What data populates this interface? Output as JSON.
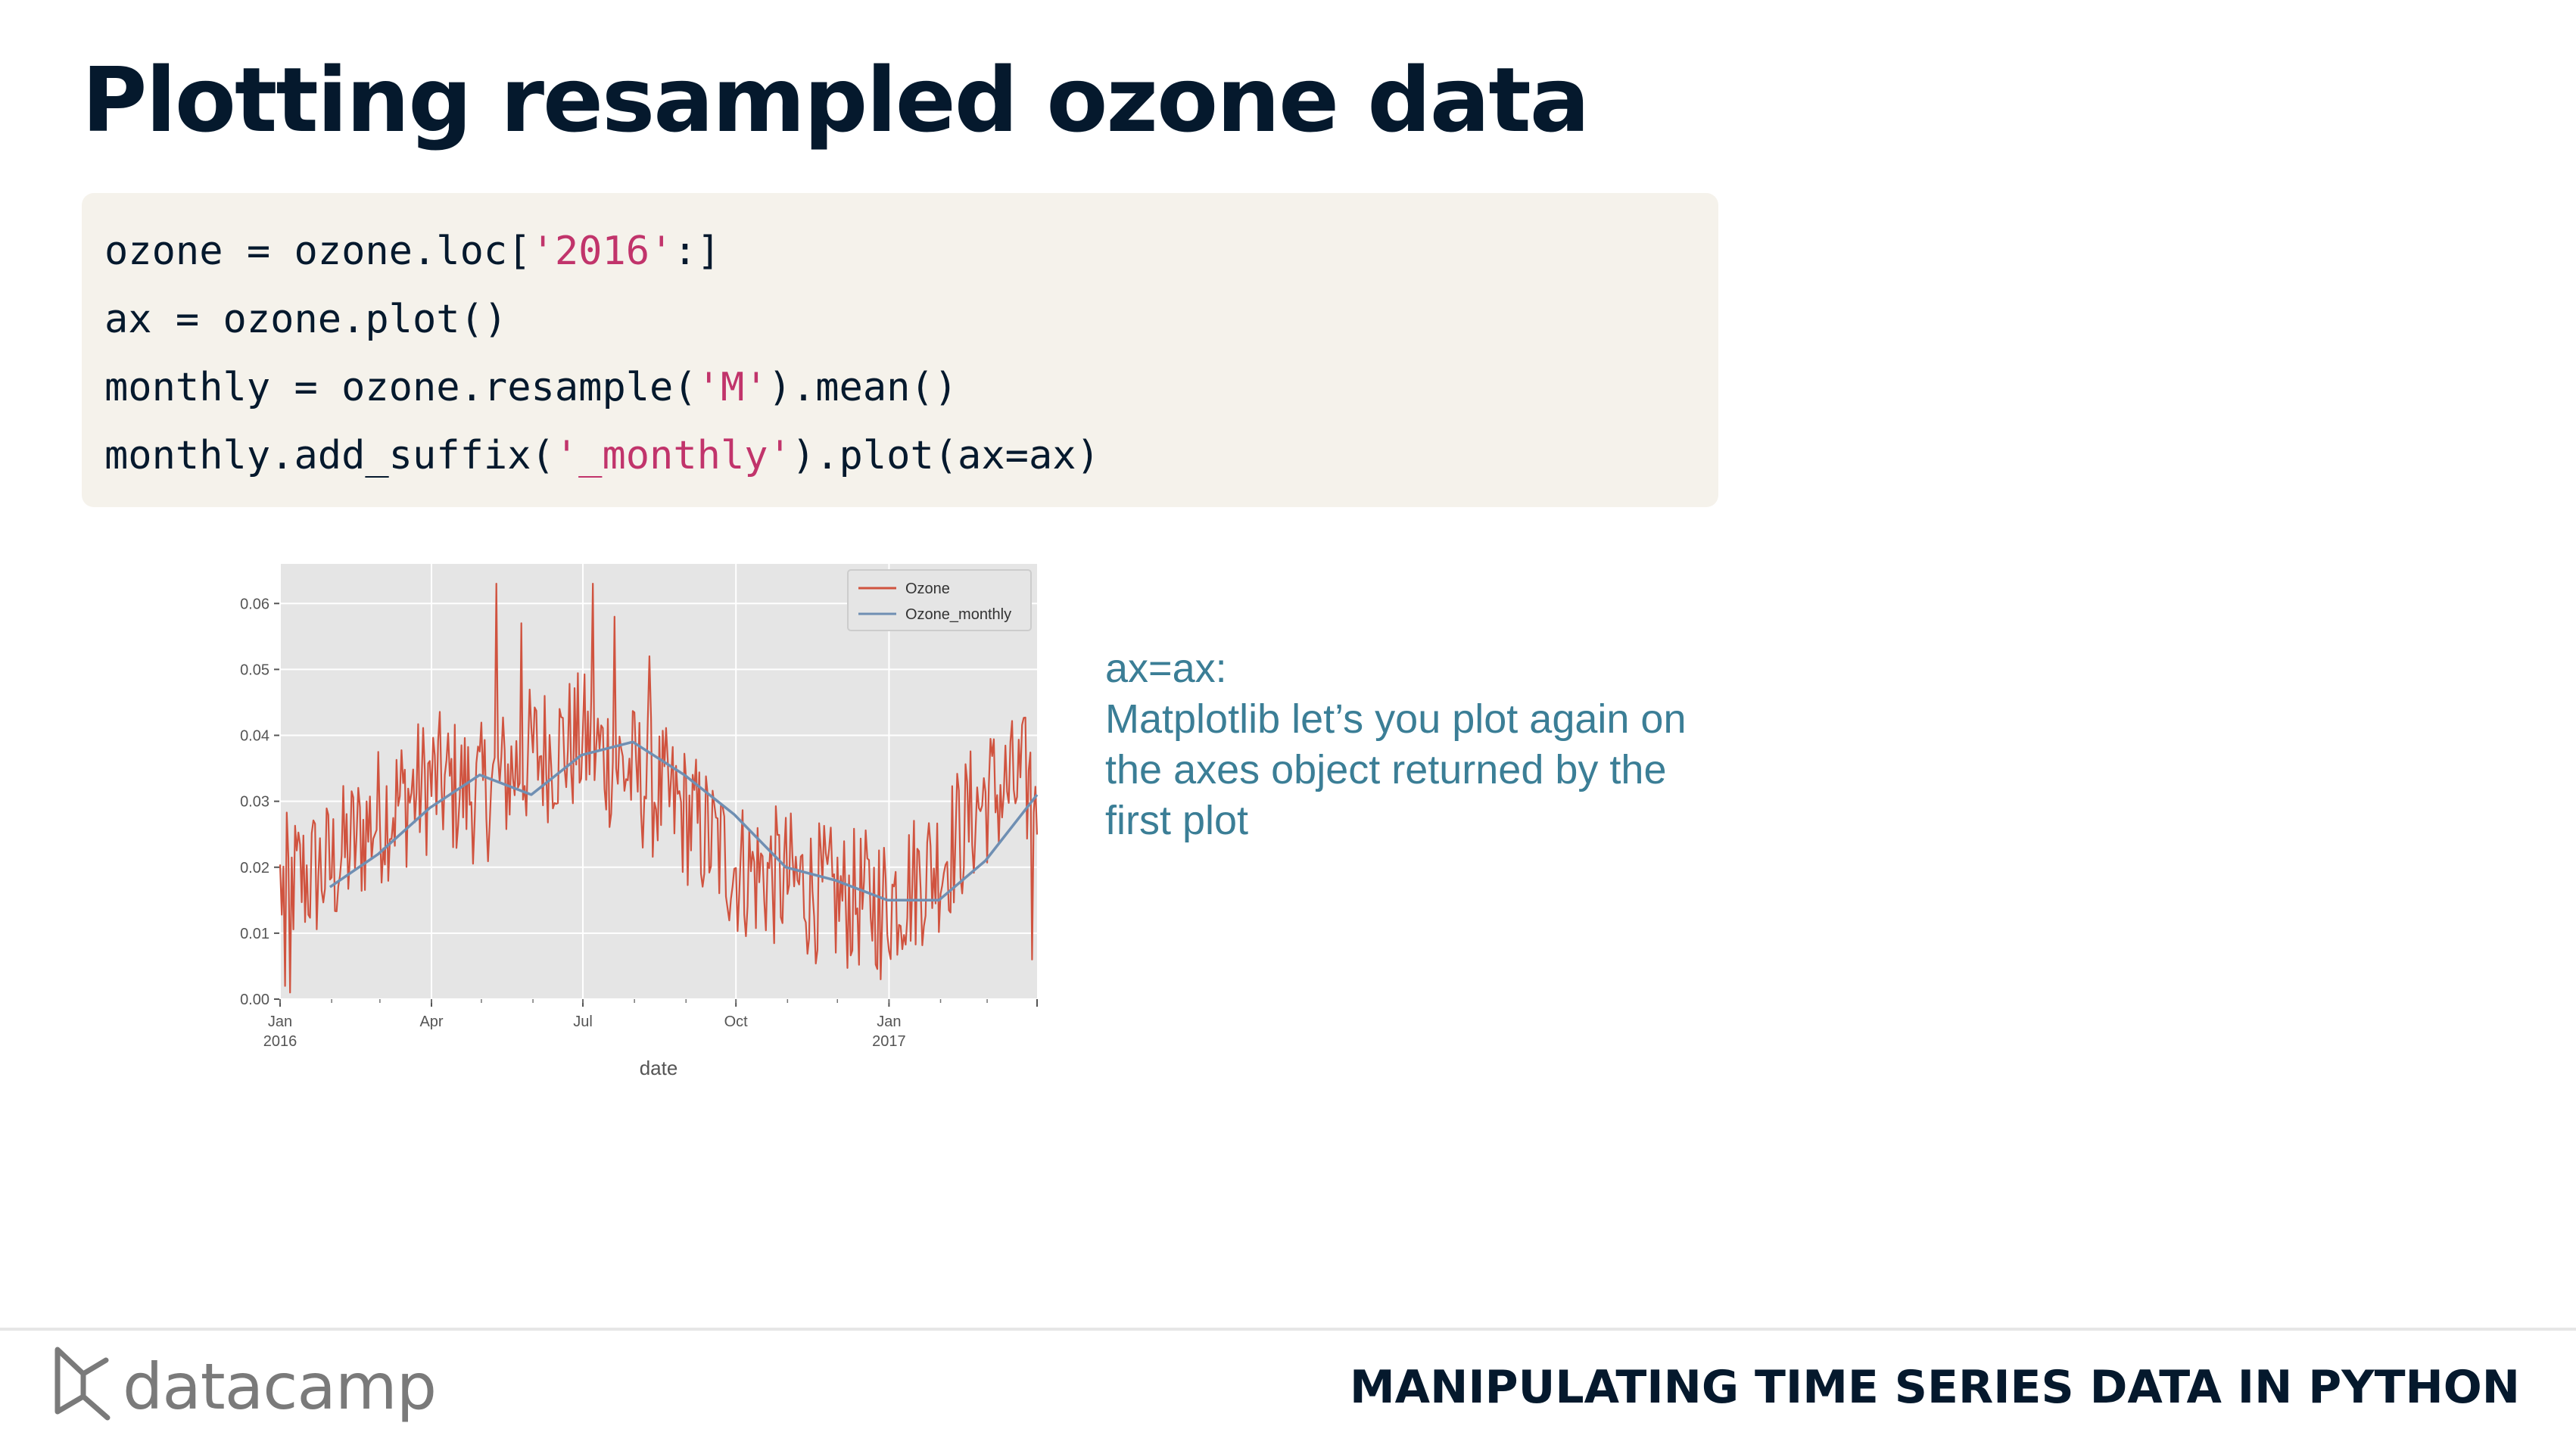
{
  "slide": {
    "title": "Plotting resampled ozone data"
  },
  "code": {
    "lines": [
      [
        {
          "t": "ozone = ozone.loc["
        },
        {
          "t": "'2016'",
          "s": true
        },
        {
          "t": ":]"
        }
      ],
      [
        {
          "t": "ax = ozone.plot()"
        }
      ],
      [
        {
          "t": "monthly = ozone.resample("
        },
        {
          "t": "'M'",
          "s": true
        },
        {
          "t": ").mean()"
        }
      ],
      [
        {
          "t": "monthly.add_suffix("
        },
        {
          "t": "'_monthly'",
          "s": true
        },
        {
          "t": ").plot(ax=ax)"
        }
      ]
    ]
  },
  "annotation": {
    "heading": "ax=ax:",
    "line1": "Matplotlib let’s you plot again on",
    "line2": "the axes object returned by the",
    "line3": "first plot"
  },
  "footer": {
    "brand": "datacamp",
    "course": "MANIPULATING TIME SERIES DATA IN PYTHON"
  },
  "colors": {
    "title": "#05192d",
    "code_bg": "#f5f2eb",
    "string": "#c1346b",
    "annotation": "#3b7e96",
    "series_ozone": "#d0533f",
    "series_monthly": "#6f8fb3",
    "plot_bg": "#e5e5e5"
  },
  "chart_data": {
    "type": "line",
    "title": "",
    "xlabel": "date",
    "ylabel": "",
    "x_range": [
      "2016-01-01",
      "2017-03-31"
    ],
    "ylim": [
      0,
      0.066
    ],
    "y_ticks": [
      0.0,
      0.01,
      0.02,
      0.03,
      0.04,
      0.05,
      0.06
    ],
    "y_tick_labels": [
      "0.00",
      "0.01",
      "0.02",
      "0.03",
      "0.04",
      "0.05",
      "0.06"
    ],
    "x_ticks": [
      {
        "date": "2016-01-01",
        "label": "Jan",
        "sublabel": "2016"
      },
      {
        "date": "2016-04-01",
        "label": "Apr",
        "sublabel": ""
      },
      {
        "date": "2016-07-01",
        "label": "Jul",
        "sublabel": ""
      },
      {
        "date": "2016-10-01",
        "label": "Oct",
        "sublabel": ""
      },
      {
        "date": "2017-01-01",
        "label": "Jan",
        "sublabel": "2017"
      }
    ],
    "grid": true,
    "legend_position": "top-right",
    "series": [
      {
        "name": "Ozone",
        "anchors": [
          [
            "2016-01-01",
            0.017
          ],
          [
            "2016-02-01",
            0.02
          ],
          [
            "2016-03-01",
            0.028
          ],
          [
            "2016-04-01",
            0.033
          ],
          [
            "2016-05-01",
            0.031
          ],
          [
            "2016-06-01",
            0.037
          ],
          [
            "2016-07-01",
            0.039
          ],
          [
            "2016-08-01",
            0.034
          ],
          [
            "2016-09-01",
            0.028
          ],
          [
            "2016-10-01",
            0.02
          ],
          [
            "2016-11-01",
            0.018
          ],
          [
            "2016-12-01",
            0.015
          ],
          [
            "2017-01-01",
            0.015
          ],
          [
            "2017-02-01",
            0.021
          ],
          [
            "2017-03-01",
            0.031
          ],
          [
            "2017-03-31",
            0.033
          ]
        ],
        "noise_amplitude": 0.011,
        "peaks": [
          [
            "2016-01-04",
            0.002
          ],
          [
            "2016-01-07",
            0.001
          ],
          [
            "2016-05-10",
            0.063
          ],
          [
            "2016-05-25",
            0.057
          ],
          [
            "2016-07-07",
            0.063
          ],
          [
            "2016-07-20",
            0.058
          ],
          [
            "2016-08-10",
            0.052
          ],
          [
            "2016-12-27",
            0.003
          ],
          [
            "2017-03-28",
            0.006
          ]
        ]
      },
      {
        "name": "Ozone_monthly",
        "values": [
          [
            "2016-01-31",
            0.017
          ],
          [
            "2016-02-29",
            0.022
          ],
          [
            "2016-03-31",
            0.029
          ],
          [
            "2016-04-30",
            0.034
          ],
          [
            "2016-05-31",
            0.031
          ],
          [
            "2016-06-30",
            0.037
          ],
          [
            "2016-07-31",
            0.039
          ],
          [
            "2016-08-31",
            0.034
          ],
          [
            "2016-09-30",
            0.028
          ],
          [
            "2016-10-31",
            0.02
          ],
          [
            "2016-11-30",
            0.018
          ],
          [
            "2016-12-31",
            0.015
          ],
          [
            "2017-01-31",
            0.015
          ],
          [
            "2017-02-28",
            0.021
          ],
          [
            "2017-03-31",
            0.031
          ]
        ]
      }
    ]
  }
}
